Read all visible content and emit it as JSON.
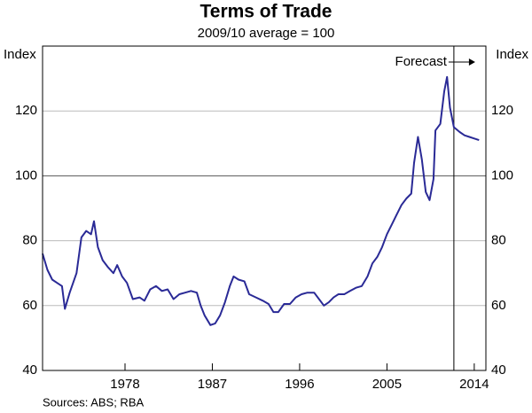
{
  "chart_data": {
    "type": "line",
    "title": "Terms of Trade",
    "subtitle": "2009/10 average = 100",
    "ylabel": "Index",
    "y2label": "Index",
    "source": "Sources: ABS; RBA",
    "xlim": [
      1969.5,
      2015.2
    ],
    "xticks": [
      1978,
      1987,
      1996,
      2005,
      2014
    ],
    "ylim": [
      40,
      140
    ],
    "yticks": [
      40,
      60,
      80,
      100,
      120
    ],
    "y2lim": [
      40,
      140
    ],
    "y2ticks": [
      40,
      60,
      80,
      100,
      120
    ],
    "grid": true,
    "annotation": {
      "text": "Forecast",
      "x": 2011.9
    },
    "x": [
      1969.5,
      1970.0,
      1970.5,
      1971.0,
      1971.5,
      1971.8,
      1972.3,
      1973.0,
      1973.5,
      1974.0,
      1974.5,
      1974.8,
      1975.2,
      1975.7,
      1976.2,
      1976.8,
      1977.2,
      1977.7,
      1978.2,
      1978.8,
      1979.5,
      1980.0,
      1980.6,
      1981.2,
      1981.8,
      1982.4,
      1983.0,
      1983.6,
      1984.2,
      1984.8,
      1985.4,
      1985.8,
      1986.2,
      1986.8,
      1987.3,
      1987.8,
      1988.3,
      1988.8,
      1989.2,
      1989.7,
      1990.3,
      1990.8,
      1991.5,
      1992.2,
      1992.8,
      1993.3,
      1993.8,
      1994.4,
      1995.0,
      1995.6,
      1996.2,
      1996.8,
      1997.5,
      1998.0,
      1998.5,
      1999.0,
      1999.5,
      2000.0,
      2000.6,
      2001.2,
      2001.8,
      2002.4,
      2003.0,
      2003.5,
      2004.0,
      2004.5,
      2005.0,
      2005.5,
      2006.0,
      2006.5,
      2007.0,
      2007.5,
      2007.8,
      2008.2,
      2008.6,
      2009.0,
      2009.4,
      2009.8,
      2010.0,
      2010.5,
      2010.9,
      2011.2,
      2011.5,
      2011.9,
      2012.5,
      2013.0,
      2013.5,
      2014.0,
      2014.5
    ],
    "series": [
      {
        "name": "Terms of Trade",
        "color": "#2a2a96",
        "values": [
          76,
          71,
          68,
          67,
          66,
          59,
          64,
          70,
          81,
          83,
          82,
          86,
          78,
          74,
          72,
          70,
          72.5,
          69,
          67,
          62,
          62.5,
          61.5,
          65,
          66,
          64.5,
          65,
          62,
          63.5,
          64,
          64.5,
          64,
          60,
          57,
          54,
          54.5,
          57,
          61,
          66,
          69,
          68,
          67.5,
          63.5,
          62.5,
          61.5,
          60.5,
          58,
          58,
          60.5,
          60.5,
          62.5,
          63.5,
          64,
          64,
          62,
          60,
          61,
          62.5,
          63.5,
          63.5,
          64.5,
          65.5,
          66,
          69,
          73,
          75,
          78,
          82,
          85,
          88,
          91,
          93,
          94.5,
          104,
          112,
          105,
          95,
          92.5,
          99,
          114,
          116,
          126,
          130.5,
          121,
          115,
          113.5,
          112.5,
          112,
          111.5,
          111
        ]
      }
    ]
  }
}
